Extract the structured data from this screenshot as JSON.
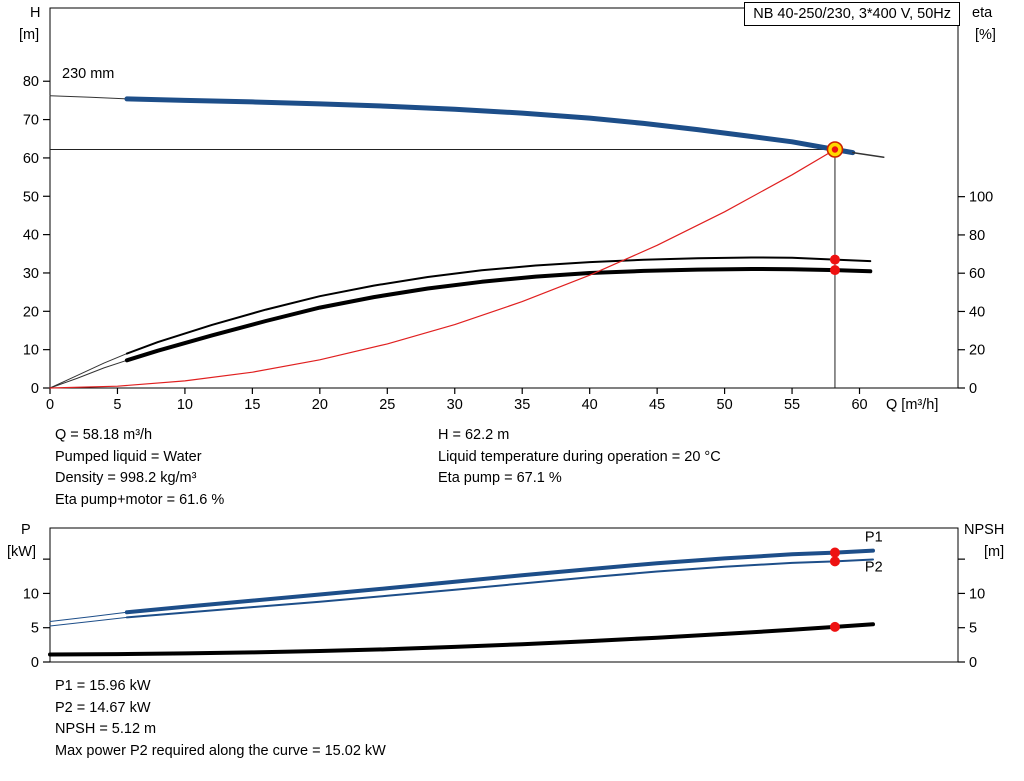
{
  "colors": {
    "curve_blue": "#1d4e89",
    "curve_black": "#000000",
    "curve_red": "#e02020",
    "lead_gray": "#333333",
    "dot_red": "#ee1111",
    "duty_fill": "#ffd800",
    "duty_ring": "#cc2200",
    "label_blue": "#1d5fa8",
    "crosshair": "#222222"
  },
  "chart_data": [
    {
      "name": "top-chart",
      "type": "line",
      "title_box": "NB 40-250/230, 3*400 V, 50Hz",
      "impeller_label": "230 mm",
      "left_axis": {
        "name": "H",
        "unit": "[m]",
        "ticks": [
          0,
          10,
          20,
          30,
          40,
          50,
          60,
          70,
          80
        ],
        "range": [
          0,
          99.1
        ]
      },
      "right_axis": {
        "name": "eta",
        "unit": "[%]",
        "ticks": [
          0,
          20,
          40,
          60,
          80,
          100
        ],
        "range": [
          0,
          198.6
        ]
      },
      "x_axis": {
        "label": "Q [m³/h]",
        "ticks": [
          0,
          5,
          10,
          15,
          20,
          25,
          30,
          35,
          40,
          45,
          50,
          55,
          60
        ],
        "range": [
          0,
          67.3
        ],
        "show_labels": true
      },
      "crosshair": {
        "q": 58.18,
        "v": 62.2
      },
      "series": [
        {
          "name": "head-lead",
          "axis": "left",
          "color": "#333333",
          "width": 1,
          "points": [
            [
              0,
              76.2
            ],
            [
              3,
              75.8
            ],
            [
              5.7,
              75.4
            ]
          ]
        },
        {
          "name": "head",
          "axis": "left",
          "color": "#1d4e89",
          "width": 5,
          "points": [
            [
              5.7,
              75.4
            ],
            [
              10,
              75.0
            ],
            [
              15,
              74.6
            ],
            [
              20,
              74.1
            ],
            [
              25,
              73.5
            ],
            [
              30,
              72.7
            ],
            [
              35,
              71.7
            ],
            [
              40,
              70.4
            ],
            [
              44,
              69.0
            ],
            [
              48,
              67.4
            ],
            [
              52,
              65.6
            ],
            [
              55,
              64.2
            ],
            [
              58.18,
              62.2
            ],
            [
              59.5,
              61.4
            ]
          ]
        },
        {
          "name": "head-tail",
          "axis": "left",
          "color": "#333333",
          "width": 1.5,
          "points": [
            [
              59.5,
              61.4
            ],
            [
              61.8,
              60.2
            ]
          ]
        },
        {
          "name": "eta-pump-lead",
          "axis": "right",
          "color": "#333333",
          "width": 1,
          "points": [
            [
              0,
              0
            ],
            [
              2,
              6.5
            ],
            [
              4,
              13
            ],
            [
              5.7,
              18
            ]
          ]
        },
        {
          "name": "eta-pump",
          "axis": "right",
          "color": "#000000",
          "width": 2,
          "points": [
            [
              5.7,
              18
            ],
            [
              8,
              24
            ],
            [
              12,
              33
            ],
            [
              16,
              41
            ],
            [
              20,
              48
            ],
            [
              24,
              53.5
            ],
            [
              28,
              58
            ],
            [
              32,
              61.5
            ],
            [
              36,
              64
            ],
            [
              40,
              65.8
            ],
            [
              44,
              67
            ],
            [
              48,
              67.8
            ],
            [
              52,
              68.2
            ],
            [
              55,
              68.1
            ],
            [
              58.18,
              67.1
            ],
            [
              60.8,
              66.3
            ]
          ]
        },
        {
          "name": "eta-pump-motor-lead",
          "axis": "right",
          "color": "#333333",
          "width": 1,
          "points": [
            [
              0,
              0
            ],
            [
              2,
              5
            ],
            [
              4,
              10.5
            ],
            [
              5.7,
              14.5
            ]
          ]
        },
        {
          "name": "eta-pump-motor",
          "axis": "right",
          "color": "#000000",
          "width": 4,
          "points": [
            [
              5.7,
              14.5
            ],
            [
              8,
              19.5
            ],
            [
              12,
              27.5
            ],
            [
              16,
              35
            ],
            [
              20,
              42
            ],
            [
              24,
              47.5
            ],
            [
              28,
              52
            ],
            [
              32,
              55.5
            ],
            [
              36,
              58.2
            ],
            [
              40,
              60.1
            ],
            [
              44,
              61.2
            ],
            [
              48,
              61.9
            ],
            [
              52,
              62.2
            ],
            [
              55,
              62.1
            ],
            [
              58.18,
              61.6
            ],
            [
              60.8,
              61.0
            ]
          ]
        },
        {
          "name": "affinity-parabola",
          "axis": "left",
          "color": "#e02020",
          "width": 1.2,
          "points": [
            [
              0,
              0
            ],
            [
              5,
              0.46
            ],
            [
              10,
              1.84
            ],
            [
              15,
              4.13
            ],
            [
              20,
              7.35
            ],
            [
              25,
              11.49
            ],
            [
              30,
              16.54
            ],
            [
              35,
              22.52
            ],
            [
              40,
              29.41
            ],
            [
              45,
              37.22
            ],
            [
              50,
              45.95
            ],
            [
              55,
              55.6
            ],
            [
              58.18,
              62.2
            ]
          ]
        }
      ],
      "markers": [
        {
          "type": "duty",
          "axis": "left",
          "q": 58.18,
          "v": 62.2
        },
        {
          "type": "dot",
          "axis": "right",
          "q": 58.18,
          "v": 67.1
        },
        {
          "type": "dot",
          "axis": "right",
          "q": 58.18,
          "v": 61.6
        }
      ]
    },
    {
      "name": "bottom-chart",
      "type": "line",
      "left_axis": {
        "name": "P",
        "unit": "[kW]",
        "ticks": [
          0,
          5,
          10,
          15
        ],
        "tick_labels": [
          "0",
          "5",
          "10",
          ""
        ],
        "range": [
          0,
          19.54
        ]
      },
      "right_axis": {
        "name": "NPSH",
        "unit": "[m]",
        "ticks": [
          0,
          5,
          10,
          15
        ],
        "tick_labels": [
          "0",
          "5",
          "10",
          ""
        ],
        "range": [
          0,
          19.54
        ]
      },
      "x_axis": {
        "ticks": [],
        "range": [
          0,
          67.3
        ],
        "show_labels": false
      },
      "series": [
        {
          "name": "p1-lead",
          "axis": "left",
          "color": "#1d4e89",
          "width": 1,
          "points": [
            [
              0,
              5.9
            ],
            [
              3,
              6.6
            ],
            [
              5.7,
              7.25
            ]
          ]
        },
        {
          "name": "p1",
          "axis": "left",
          "color": "#1d4e89",
          "width": 4,
          "points": [
            [
              5.7,
              7.25
            ],
            [
              10,
              8.05
            ],
            [
              15,
              8.95
            ],
            [
              20,
              9.85
            ],
            [
              25,
              10.75
            ],
            [
              30,
              11.7
            ],
            [
              35,
              12.65
            ],
            [
              40,
              13.55
            ],
            [
              45,
              14.4
            ],
            [
              50,
              15.1
            ],
            [
              55,
              15.7
            ],
            [
              58.18,
              15.96
            ],
            [
              61,
              16.25
            ]
          ]
        },
        {
          "name": "p2-lead",
          "axis": "left",
          "color": "#1d4e89",
          "width": 1,
          "points": [
            [
              0,
              5.25
            ],
            [
              3,
              5.9
            ],
            [
              5.7,
              6.5
            ]
          ]
        },
        {
          "name": "p2",
          "axis": "left",
          "color": "#1d4e89",
          "width": 2,
          "points": [
            [
              5.7,
              6.5
            ],
            [
              10,
              7.2
            ],
            [
              15,
              8.0
            ],
            [
              20,
              8.8
            ],
            [
              25,
              9.65
            ],
            [
              30,
              10.55
            ],
            [
              35,
              11.45
            ],
            [
              40,
              12.35
            ],
            [
              45,
              13.2
            ],
            [
              50,
              13.9
            ],
            [
              55,
              14.45
            ],
            [
              58.18,
              14.67
            ],
            [
              61,
              14.95
            ]
          ]
        },
        {
          "name": "npsh",
          "axis": "right",
          "color": "#000000",
          "width": 4,
          "points": [
            [
              0,
              1.1
            ],
            [
              5,
              1.15
            ],
            [
              10,
              1.25
            ],
            [
              15,
              1.4
            ],
            [
              20,
              1.6
            ],
            [
              25,
              1.85
            ],
            [
              30,
              2.2
            ],
            [
              35,
              2.6
            ],
            [
              40,
              3.05
            ],
            [
              45,
              3.55
            ],
            [
              50,
              4.1
            ],
            [
              55,
              4.7
            ],
            [
              58.18,
              5.12
            ],
            [
              61,
              5.5
            ]
          ]
        }
      ],
      "labels": [
        {
          "text": "P1",
          "axis": "left",
          "q": 60.4,
          "v": 17.6
        },
        {
          "text": "P2",
          "axis": "left",
          "q": 60.4,
          "v": 13.2
        }
      ],
      "markers": [
        {
          "type": "dot",
          "axis": "left",
          "q": 58.18,
          "v": 15.96
        },
        {
          "type": "dot",
          "axis": "left",
          "q": 58.18,
          "v": 14.67
        },
        {
          "type": "dot",
          "axis": "right",
          "q": 58.18,
          "v": 5.12
        }
      ]
    }
  ],
  "info_top": {
    "left": [
      "Q = 58.18 m³/h",
      "Pumped liquid = Water",
      "Density = 998.2 kg/m³",
      "Eta pump+motor = 61.6 %"
    ],
    "right": [
      "H = 62.2 m",
      "Liquid temperature during operation = 20 °C",
      "Eta pump = 67.1 %"
    ]
  },
  "info_bottom": [
    "P1 = 15.96 kW",
    "P2 = 14.67 kW",
    "NPSH = 5.12 m",
    "Max power P2 required along the curve = 15.02 kW"
  ]
}
